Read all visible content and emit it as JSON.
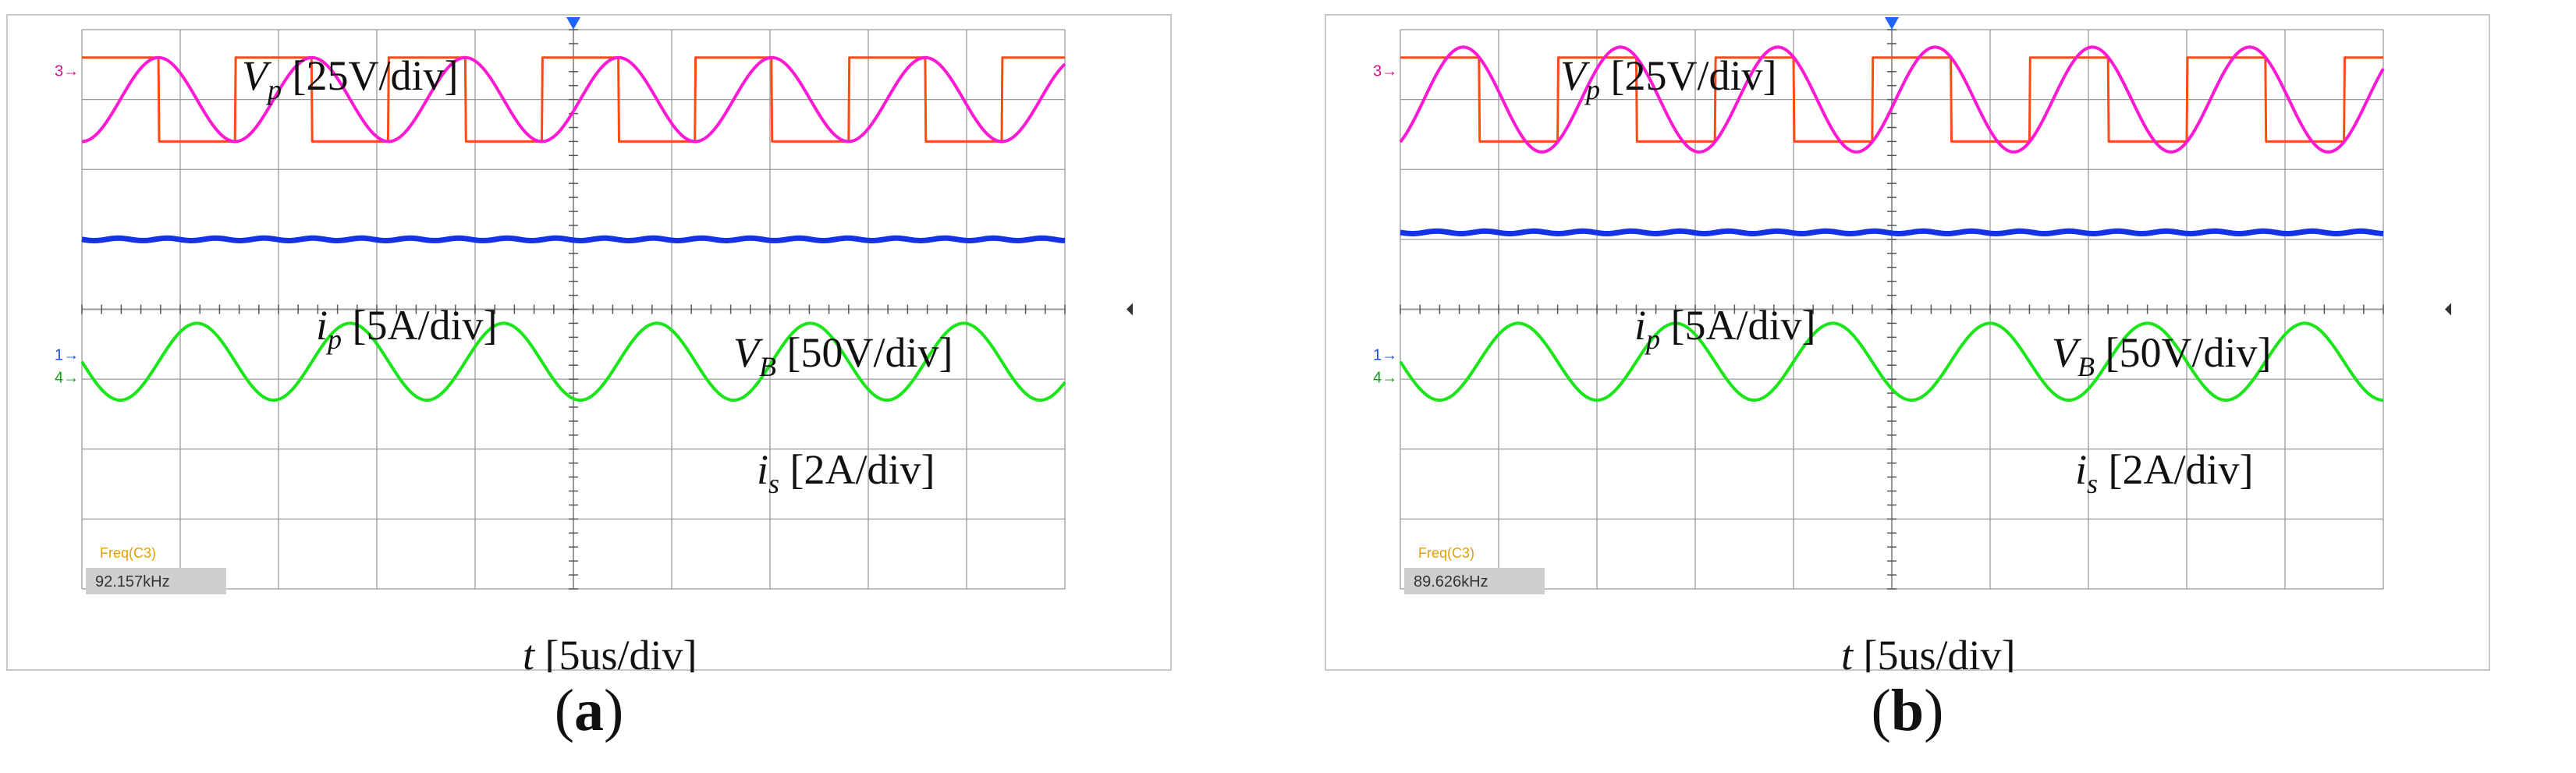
{
  "colors": {
    "vp": "#ff4a14",
    "ip": "#ff19d2",
    "vb": "#1432e6",
    "is": "#19e619",
    "grid": "#9a9a9a",
    "trigger": "#1e64ff",
    "label_freq": "#e6a000",
    "ch_marker_ip": "#c8148c",
    "ch_marker_vb": "#1e50dc",
    "ch_marker_is": "#14a014"
  },
  "panels": [
    {
      "id": "a",
      "label": "a",
      "freq_label": "Freq(C3)",
      "freq_value": "92.157kHz",
      "marker_3": "3",
      "marker_1": "1",
      "marker_4": "4",
      "annotations": {
        "vp": {
          "sym": "V",
          "sub": "p",
          "text": " [25V/div]"
        },
        "ip": {
          "sym": "i",
          "sub": "p",
          "text": " [5A/div]"
        },
        "vb": {
          "sym": "V",
          "sub": "B",
          "text": " [50V/div]"
        },
        "is": {
          "sym": "i",
          "sub": "s",
          "text": " [2A/div]"
        },
        "t": {
          "sym": "t",
          "sub": "",
          "text": " [5us/div]"
        }
      }
    },
    {
      "id": "b",
      "label": "b",
      "freq_label": "Freq(C3)",
      "freq_value": "89.626kHz",
      "marker_3": "3",
      "marker_1": "1",
      "marker_4": "4",
      "annotations": {
        "vp": {
          "sym": "V",
          "sub": "p",
          "text": " [25V/div]"
        },
        "ip": {
          "sym": "i",
          "sub": "p",
          "text": " [5A/div]"
        },
        "vb": {
          "sym": "V",
          "sub": "B",
          "text": " [50V/div]"
        },
        "is": {
          "sym": "i",
          "sub": "s",
          "text": " [2A/div]"
        },
        "t": {
          "sym": "t",
          "sub": "",
          "text": " [5us/div]"
        }
      }
    }
  ],
  "chart_data": [
    {
      "type": "line",
      "panel": "a",
      "x_divisions": 10,
      "y_divisions": 8,
      "x_unit_per_div": "5us",
      "series": [
        {
          "name": "Vp",
          "scale": "25V/div",
          "shape": "square",
          "center_div": 3.0,
          "amplitude_div": 0.6,
          "period_div": 1.56,
          "phase": 0.0
        },
        {
          "name": "ip",
          "scale": "5A/div",
          "shape": "sine",
          "center_div": 3.0,
          "amplitude_div": 0.6,
          "period_div": 1.56,
          "phase": -0.25
        },
        {
          "name": "VB",
          "scale": "50V/div",
          "shape": "dc",
          "level_div": 1.0
        },
        {
          "name": "is",
          "scale": "2A/div",
          "shape": "sine",
          "center_div": -0.75,
          "amplitude_div": 0.55,
          "period_div": 1.56,
          "phase": 0.5
        }
      ]
    },
    {
      "type": "line",
      "panel": "b",
      "x_divisions": 10,
      "y_divisions": 8,
      "x_unit_per_div": "5us",
      "series": [
        {
          "name": "Vp",
          "scale": "25V/div",
          "shape": "square",
          "center_div": 3.0,
          "amplitude_div": 0.6,
          "period_div": 1.6,
          "phase": 0.0
        },
        {
          "name": "ip",
          "scale": "5A/div",
          "shape": "sine",
          "center_div": 3.0,
          "amplitude_div": 0.75,
          "period_div": 1.6,
          "phase": -0.15
        },
        {
          "name": "VB",
          "scale": "50V/div",
          "shape": "dc",
          "level_div": 1.1
        },
        {
          "name": "is",
          "scale": "2A/div",
          "shape": "sine",
          "center_div": -0.75,
          "amplitude_div": 0.55,
          "period_div": 1.6,
          "phase": 0.5
        }
      ]
    }
  ]
}
